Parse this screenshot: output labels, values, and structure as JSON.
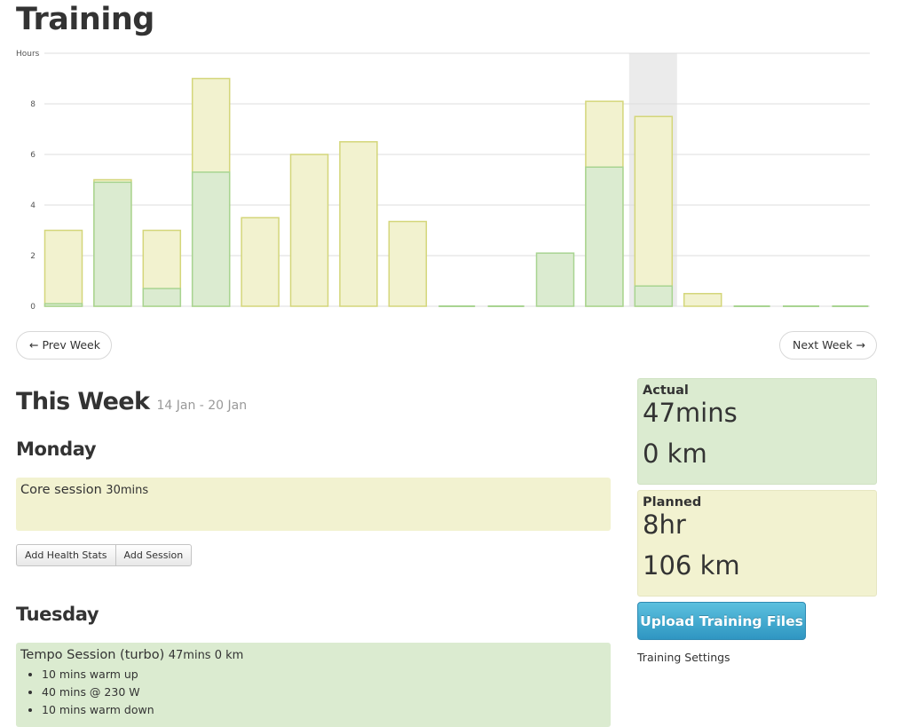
{
  "page": {
    "title": "Training"
  },
  "chart_data": {
    "type": "bar",
    "ylabel": "Hours",
    "ylim": [
      0,
      10
    ],
    "yticks": [
      0,
      2,
      4,
      6,
      8
    ],
    "highlight_index": 12,
    "series": [
      {
        "name": "Planned",
        "values": [
          3.0,
          5.0,
          3.0,
          9.0,
          3.5,
          6.0,
          6.5,
          3.35,
          0,
          0,
          0,
          8.1,
          7.5,
          0.5,
          0,
          0,
          0
        ]
      },
      {
        "name": "Actual",
        "values": [
          0.1,
          4.9,
          0.7,
          5.3,
          0,
          0,
          0,
          0,
          0,
          0,
          2.1,
          5.5,
          0.8,
          0,
          0,
          0,
          0
        ]
      }
    ],
    "colors": {
      "planned_fill": "#f2f2cf",
      "planned_stroke": "#d4d67a",
      "actual_fill": "#dbebd0",
      "actual_stroke": "#a8d491",
      "grid": "#dcdcdc",
      "highlight": "#ebebeb"
    }
  },
  "nav": {
    "prev": "← Prev Week",
    "next": "Next Week →"
  },
  "week": {
    "heading": "This Week",
    "range": "14 Jan - 20 Jan"
  },
  "days": {
    "monday": {
      "title": "Monday",
      "session": {
        "name": "Core session",
        "meta": "30mins"
      }
    },
    "tuesday": {
      "title": "Tuesday",
      "session": {
        "name": "Tempo Session (turbo)",
        "meta": "47mins 0 km",
        "steps": [
          "10 mins warm up",
          "40 mins @ 230 W",
          "10 mins warm down"
        ]
      }
    }
  },
  "buttons": {
    "add_health_stats": "Add Health Stats",
    "add_session": "Add Session"
  },
  "summary": {
    "actual": {
      "label": "Actual",
      "time": "47mins",
      "distance": "0 km"
    },
    "planned": {
      "label": "Planned",
      "time": "8hr",
      "distance": "106 km"
    }
  },
  "upload": {
    "label": "Upload Training Files"
  },
  "settings": {
    "label": "Training Settings"
  }
}
